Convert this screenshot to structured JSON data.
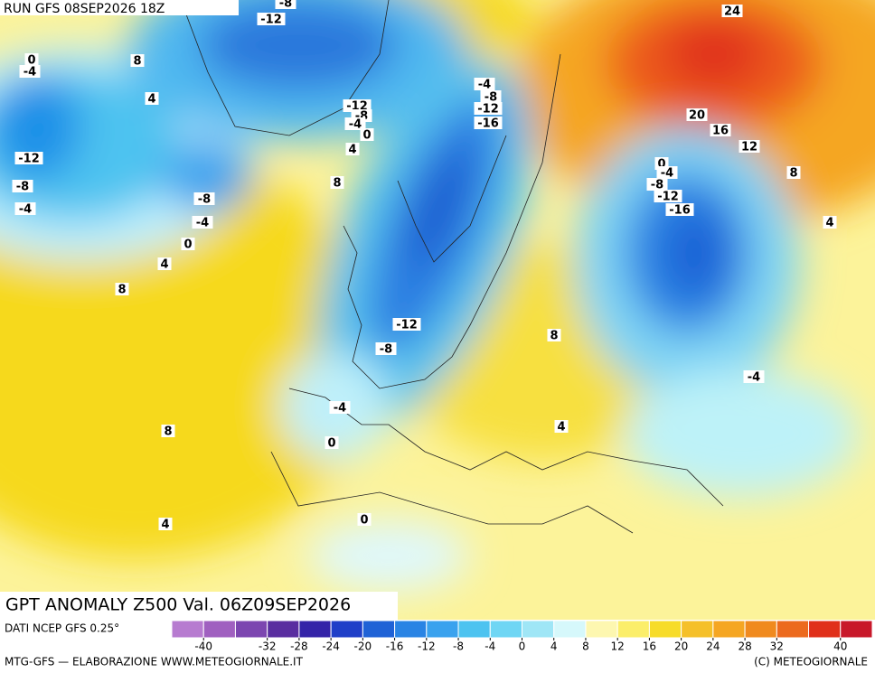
{
  "header": {
    "run": "RUN GFS 08SEP2026 18Z"
  },
  "title": "GPT ANOMALY Z500 Val. 06Z09SEP2026",
  "source": "DATI NCEP GFS 0.25°",
  "footer": {
    "left": "MTG-GFS — ELABORAZIONE WWW.METEOGIORNALE.IT",
    "right": "(C) METEOGIORNALE"
  },
  "contour_labels": [
    "0",
    "-4",
    "8",
    "4",
    "-12",
    "-8",
    "-4",
    "-8",
    "-4",
    "0",
    "4",
    "8",
    "8",
    "4",
    "0",
    "0",
    "-4",
    "-8",
    "-12",
    "8",
    "4",
    "-4",
    "4",
    "8",
    "12",
    "16",
    "20",
    "24",
    "-4",
    "-8",
    "-12",
    "-16",
    "-12",
    "-8",
    "-4",
    "0",
    "4",
    "8",
    "-8",
    "-12",
    "0",
    "-4",
    "-8",
    "-12",
    "-16"
  ],
  "colorbar": {
    "lim": [
      -44,
      44
    ],
    "colors": [
      "#b77bd0",
      "#a060c0",
      "#7c46b0",
      "#5a2ea0",
      "#3424a8",
      "#1f3fc8",
      "#1f62d6",
      "#2a84e4",
      "#3aa2ee",
      "#4dc3f0",
      "#6fd6f4",
      "#9fe6f6",
      "#d6f8fb",
      "#fdf7b0",
      "#fbee6a",
      "#f7dc2a",
      "#f5c02a",
      "#f5a623",
      "#f08a1e",
      "#ec6a1e",
      "#e0301a",
      "#c8182a"
    ],
    "ticks": [
      -40,
      -32,
      -28,
      -24,
      -20,
      -16,
      -12,
      -8,
      -4,
      0,
      4,
      8,
      12,
      16,
      20,
      24,
      28,
      32,
      40
    ]
  }
}
